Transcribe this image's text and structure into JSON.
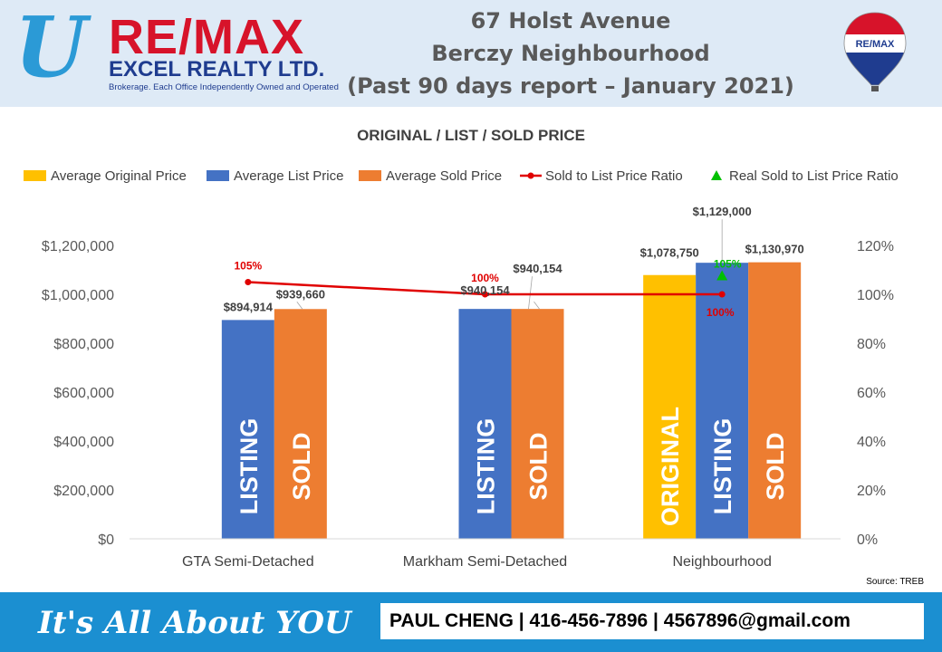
{
  "brand": {
    "logo_u": "U",
    "logo_re": "RE/",
    "logo_max": "MAX",
    "logo_excel": "EXCEL REALTY LTD.",
    "logo_brokerage": "Brokerage. Each Office Independently Owned and Operated",
    "balloon_text": "RE/MAX",
    "colors": {
      "red": "#d7132a",
      "blue": "#1f3c8f",
      "light_blue": "#2b9ad6"
    }
  },
  "header": {
    "line1": "67 Holst Avenue",
    "line2": "Berczy Neighbourhood",
    "line3": "(Past 90 days report – January 2021)"
  },
  "chart_data": {
    "type": "bar",
    "title": "ORIGINAL / LIST / SOLD PRICE",
    "categories": [
      "GTA  Semi-Detached",
      "Markham  Semi-Detached",
      "Neighbourhood"
    ],
    "series": [
      {
        "name": "Average Original Price",
        "color": "#ffc000",
        "values": [
          null,
          null,
          1078750
        ],
        "labels": [
          "",
          "",
          "$1,078,750"
        ],
        "bar_text": [
          "",
          "",
          "ORIGINAL"
        ]
      },
      {
        "name": "Average List Price",
        "color": "#4472c4",
        "values": [
          894914,
          940154,
          1129000
        ],
        "labels": [
          "$894,914",
          "$940,154",
          "$1,129,000"
        ],
        "bar_text": [
          "LISTING",
          "LISTING",
          "LISTING"
        ]
      },
      {
        "name": "Average Sold Price",
        "color": "#ed7d31",
        "values": [
          939660,
          940154,
          1130970
        ],
        "labels": [
          "$939,660",
          "$940,154",
          "$1,130,970"
        ],
        "bar_text": [
          "SOLD",
          "SOLD",
          "SOLD"
        ]
      }
    ],
    "line_series": [
      {
        "name": "Sold to List Price Ratio",
        "color": "#e00000",
        "axis": "right",
        "values": [
          105,
          100,
          100
        ],
        "labels": [
          "105%",
          "100%",
          "100%"
        ]
      }
    ],
    "marker_series": [
      {
        "name": "Real Sold to List Price Ratio",
        "color": "#00c000",
        "axis": "right",
        "values": [
          null,
          null,
          105
        ],
        "labels": [
          "",
          "",
          "105%"
        ]
      }
    ],
    "y_left": {
      "min": 0,
      "max": 1200000,
      "ticks": [
        "$0",
        "$200,000",
        "$400,000",
        "$600,000",
        "$800,000",
        "$1,000,000",
        "$1,200,000"
      ]
    },
    "y_right": {
      "min": 0,
      "max": 120,
      "ticks": [
        "0%",
        "20%",
        "40%",
        "60%",
        "80%",
        "100%",
        "120%"
      ]
    },
    "legend": "top",
    "grid": false,
    "source": "Source: TREB"
  },
  "footer": {
    "slogan": "It's All About YOU",
    "contact": "PAUL CHENG | 416-456-7896 | 4567896@gmail.com"
  }
}
